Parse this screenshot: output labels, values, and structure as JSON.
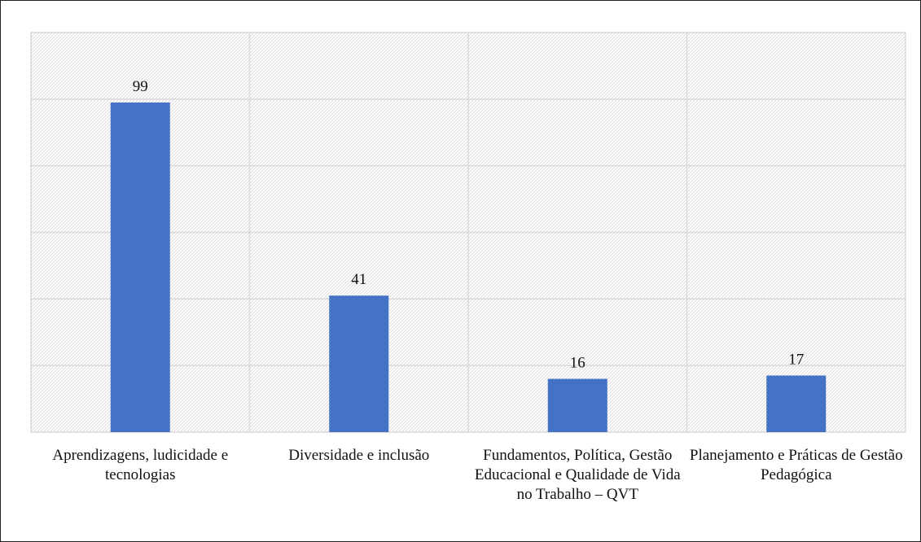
{
  "chart_data": {
    "type": "bar",
    "categories": [
      "Aprendizagens, ludicidade e tecnologias",
      "Diversidade e inclusão",
      "Fundamentos, Política, Gestão Educacional e Qualidade de Vida no Trabalho – QVT",
      "Planejamento e Práticas de Gestão Pedagógica"
    ],
    "values": [
      99,
      41,
      16,
      17
    ],
    "value_labels": [
      "99",
      "41",
      "16",
      "17"
    ],
    "ylim": [
      0,
      120
    ],
    "y_gridlines": [
      0,
      20,
      40,
      60,
      80,
      100,
      120
    ],
    "grid": true,
    "legend": "none",
    "bar_color": "#4472C4",
    "plot_background": "hatched"
  }
}
